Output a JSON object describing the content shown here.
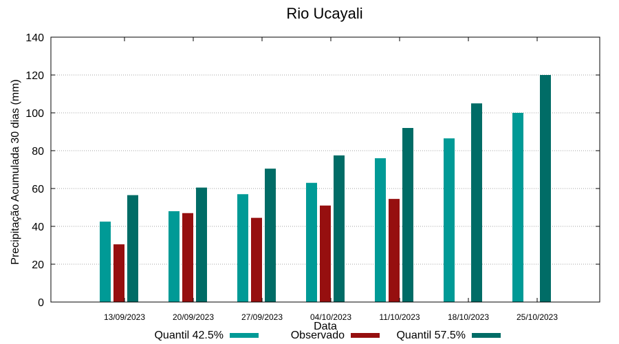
{
  "chart_data": {
    "type": "bar",
    "title": "Rio Ucayali",
    "xlabel": "Data",
    "ylabel": "Precipitação Acumulada 30 dias (mm)",
    "ylim": [
      0,
      140
    ],
    "yticks": [
      0,
      20,
      40,
      60,
      80,
      100,
      120,
      140
    ],
    "grid": true,
    "legend_position": "bottom",
    "categories": [
      "13/09/2023",
      "20/09/2023",
      "27/09/2023",
      "04/10/2023",
      "11/10/2023",
      "18/10/2023",
      "25/10/2023"
    ],
    "series": [
      {
        "name": "Quantil 42.5%",
        "color": "#009a96",
        "values": [
          42.5,
          48,
          57,
          63,
          76,
          86.5,
          100
        ]
      },
      {
        "name": "Observado",
        "color": "#960f0f",
        "values": [
          30.5,
          47,
          44.5,
          51,
          54.5,
          null,
          null
        ]
      },
      {
        "name": "Quantil 57.5%",
        "color": "#006c66",
        "values": [
          56.5,
          60.5,
          70.5,
          77.5,
          92,
          105,
          120
        ]
      }
    ]
  }
}
